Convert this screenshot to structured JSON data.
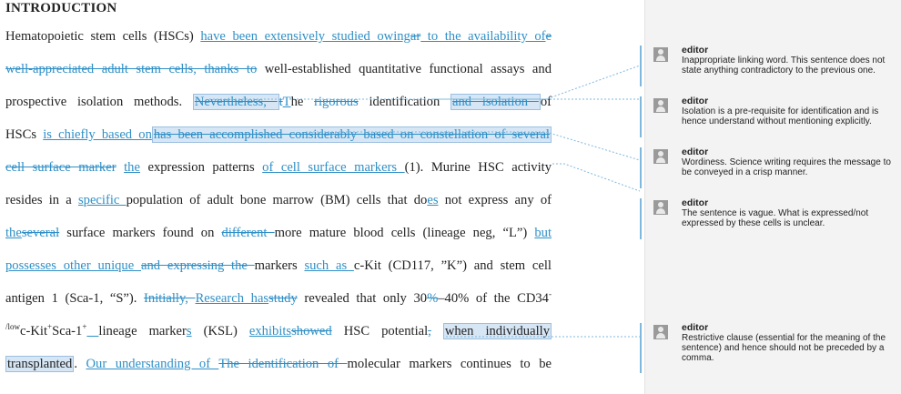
{
  "document": {
    "heading": "INTRODUCTION",
    "lines": [
      [
        {
          "t": "Hematopoietic stem cells (HSCs) ",
          "s": "n"
        },
        {
          "t": "have been extensively studied owing",
          "s": "ins"
        },
        {
          "t": "ar",
          "s": "del"
        },
        {
          "t": " to the availability of",
          "s": "ins"
        },
        {
          "t": "e",
          "s": "del"
        }
      ],
      [
        {
          "t": "well-appreciated adult stem cells, thanks to",
          "s": "del"
        },
        {
          "t": " well-established quantitative functional assays and",
          "s": "n"
        }
      ],
      [
        {
          "t": "prospective isolation methods. ",
          "s": "n"
        },
        {
          "t": "Nevertheless, ",
          "s": "del hl"
        },
        {
          "t": "t",
          "s": "del"
        },
        {
          "t": "T",
          "s": "ins"
        },
        {
          "t": "he ",
          "s": "n"
        },
        {
          "t": "rigorous",
          "s": "del"
        },
        {
          "t": " identification ",
          "s": "n"
        },
        {
          "t": "and isolation ",
          "s": "del hl"
        },
        {
          "t": "of",
          "s": "n"
        }
      ],
      [
        {
          "t": "HSCs ",
          "s": "n"
        },
        {
          "t": "is chiefly based on",
          "s": "ins"
        },
        {
          "t": "has been accomplished considerably based on constellation of several",
          "s": "del hl"
        }
      ],
      [
        {
          "t": "cell surface marker",
          "s": "del"
        },
        {
          "t": " ",
          "s": "n"
        },
        {
          "t": "the",
          "s": "ins"
        },
        {
          "t": " expression patterns ",
          "s": "n"
        },
        {
          "t": "of cell surface markers ",
          "s": "ins"
        },
        {
          "t": "(1). Murine HSC activity",
          "s": "n"
        }
      ],
      [
        {
          "t": "resides in a ",
          "s": "n"
        },
        {
          "t": "specific ",
          "s": "ins"
        },
        {
          "t": "population of adult bone marrow (BM) cells that do",
          "s": "n"
        },
        {
          "t": "es",
          "s": "ins"
        },
        {
          "t": " not express any of",
          "s": "n"
        }
      ],
      [
        {
          "t": "the",
          "s": "ins"
        },
        {
          "t": "several",
          "s": "del"
        },
        {
          "t": " surface markers found on ",
          "s": "n"
        },
        {
          "t": "different ",
          "s": "del"
        },
        {
          "t": "more mature blood cells (lineage neg, “L”) ",
          "s": "n"
        },
        {
          "t": "but",
          "s": "ins"
        }
      ],
      [
        {
          "t": "possesses other unique ",
          "s": "ins"
        },
        {
          "t": "and expressing the ",
          "s": "del"
        },
        {
          "t": "markers ",
          "s": "n"
        },
        {
          "t": "such as ",
          "s": "ins"
        },
        {
          "t": "c-Kit (CD117, ”K”) and stem cell",
          "s": "n"
        }
      ],
      [
        {
          "t": "antigen 1 (Sca-1, “S”). ",
          "s": "n"
        },
        {
          "t": "Initially, ",
          "s": "del"
        },
        {
          "t": "Research has",
          "s": "ins"
        },
        {
          "t": "study",
          "s": "del"
        },
        {
          "t": " revealed that only 30",
          "s": "n"
        },
        {
          "t": "%",
          "s": "del"
        },
        {
          "t": "–40% of the CD34",
          "s": "n"
        },
        {
          "t": "-",
          "s": "sup"
        }
      ],
      [
        {
          "t": "/low",
          "s": "sup"
        },
        {
          "t": "c-Kit",
          "s": "n"
        },
        {
          "t": "+",
          "s": "sup"
        },
        {
          "t": "Sca-1",
          "s": "n"
        },
        {
          "t": "+",
          "s": "sup"
        },
        {
          "t": " ",
          "s": "ins"
        },
        {
          "t": " lineage marker",
          "s": "n"
        },
        {
          "t": "s",
          "s": "ins"
        },
        {
          "t": " (KSL) ",
          "s": "n"
        },
        {
          "t": "exhibits",
          "s": "ins"
        },
        {
          "t": "showed",
          "s": "del"
        },
        {
          "t": " HSC potential",
          "s": "n"
        },
        {
          "t": ",",
          "s": "del"
        },
        {
          "t": " ",
          "s": "n"
        },
        {
          "t": "when individually",
          "s": "n hl"
        }
      ],
      [
        {
          "t": "transplanted",
          "s": "n hl"
        },
        {
          "t": ". ",
          "s": "n"
        },
        {
          "t": "Our understanding of ",
          "s": "ins"
        },
        {
          "t": "The identification of ",
          "s": "del"
        },
        {
          "t": "molecular markers continues to be",
          "s": "n"
        }
      ]
    ]
  },
  "comments": [
    {
      "author": "editor",
      "text": "Inappropriate linking word. This sentence does not state anything contradictory to the previous one."
    },
    {
      "author": "editor",
      "text": "Isolation is a pre-requisite for identification and is hence understand without mentioning explicitly."
    },
    {
      "author": "editor",
      "text": "Wordiness. Science writing requires the message to be conveyed in a crisp manner."
    },
    {
      "author": "editor",
      "text": "The sentence is vague. What is expressed/not expressed by these cells is unclear."
    },
    {
      "author": "editor",
      "text": "Restrictive clause (essential for the meaning of the sentence) and hence should not be preceded by a comma."
    }
  ]
}
